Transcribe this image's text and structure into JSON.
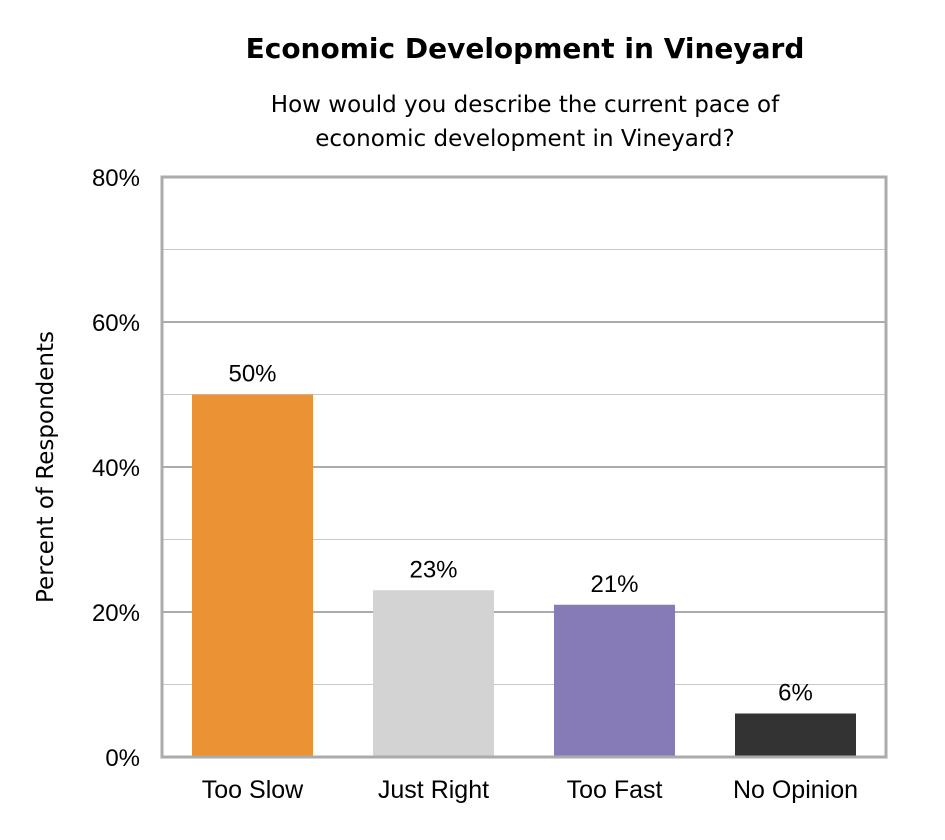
{
  "chart_data": {
    "type": "bar",
    "title": "Economic Development in Vineyard",
    "subtitle_lines": [
      "How would you describe the current pace of",
      "economic development in Vineyard?"
    ],
    "xlabel": "",
    "ylabel": "Percent of Respondents",
    "ylim": [
      0,
      80
    ],
    "yticks": [
      0,
      20,
      40,
      60,
      80
    ],
    "ytick_labels": [
      "0%",
      "20%",
      "40%",
      "60%",
      "80%"
    ],
    "grid": true,
    "categories": [
      "Too Slow",
      "Just Right",
      "Too Fast",
      "No Opinion"
    ],
    "values": [
      50,
      23,
      21,
      6
    ],
    "data_labels": [
      "50%",
      "23%",
      "21%",
      "6%"
    ],
    "colors": [
      "#EB9234",
      "#D3D3D3",
      "#877BB7",
      "#333333"
    ]
  }
}
